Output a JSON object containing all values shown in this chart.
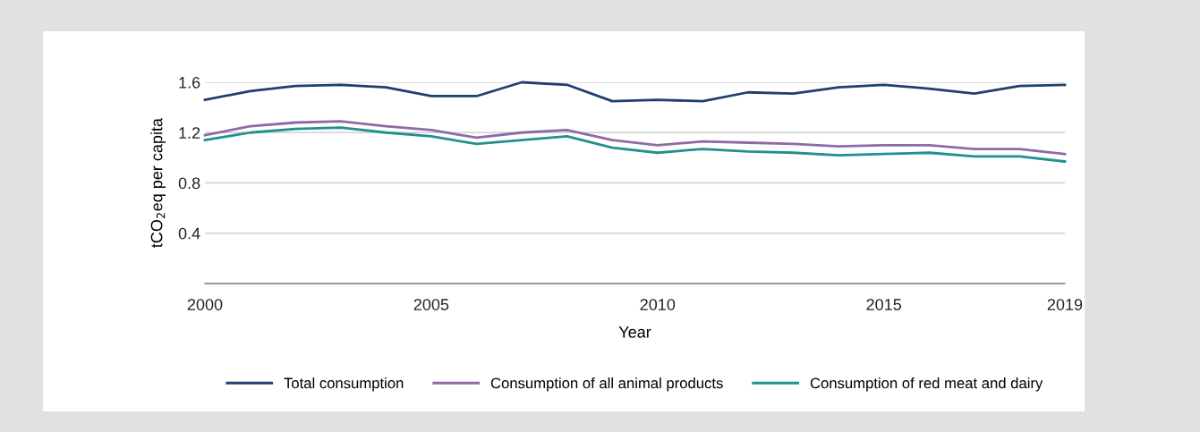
{
  "chart_data": {
    "type": "line",
    "xlabel": "Year",
    "ylabel": "tCO$_{2}$eq per capita",
    "x": [
      2000,
      2001,
      2002,
      2003,
      2004,
      2005,
      2006,
      2007,
      2008,
      2009,
      2010,
      2011,
      2012,
      2013,
      2014,
      2015,
      2016,
      2017,
      2018,
      2019
    ],
    "series": [
      {
        "name": "Total consumption",
        "color": "#1f3f6e",
        "values": [
          1.46,
          1.53,
          1.57,
          1.58,
          1.56,
          1.49,
          1.49,
          1.6,
          1.58,
          1.45,
          1.46,
          1.45,
          1.52,
          1.51,
          1.56,
          1.58,
          1.55,
          1.51,
          1.57,
          1.58
        ]
      },
      {
        "name": "Consumption of all animal products",
        "color": "#8e6aa6",
        "values": [
          1.18,
          1.25,
          1.28,
          1.29,
          1.25,
          1.22,
          1.16,
          1.2,
          1.22,
          1.14,
          1.1,
          1.13,
          1.12,
          1.11,
          1.09,
          1.1,
          1.1,
          1.07,
          1.07,
          1.03
        ]
      },
      {
        "name": "Consumption of red meat and dairy",
        "color": "#21908f",
        "values": [
          1.14,
          1.2,
          1.23,
          1.24,
          1.2,
          1.17,
          1.11,
          1.14,
          1.17,
          1.08,
          1.04,
          1.07,
          1.05,
          1.04,
          1.02,
          1.03,
          1.04,
          1.01,
          1.01,
          0.97
        ]
      }
    ],
    "xlim": [
      2000,
      2019
    ],
    "xticks": [
      2000,
      2005,
      2010,
      2015,
      2019
    ],
    "ylim": [
      0,
      1.6
    ],
    "yticks": [
      {
        "value": 0.4,
        "label": "0.4"
      },
      {
        "value": 0.8,
        "label": "0.8"
      },
      {
        "value": 1.2,
        "label": "1.2"
      },
      {
        "value": 1.6,
        "label": "1.6"
      }
    ],
    "grid": "y",
    "legend": "bottom",
    "marker": "none",
    "line_style": "solid"
  }
}
